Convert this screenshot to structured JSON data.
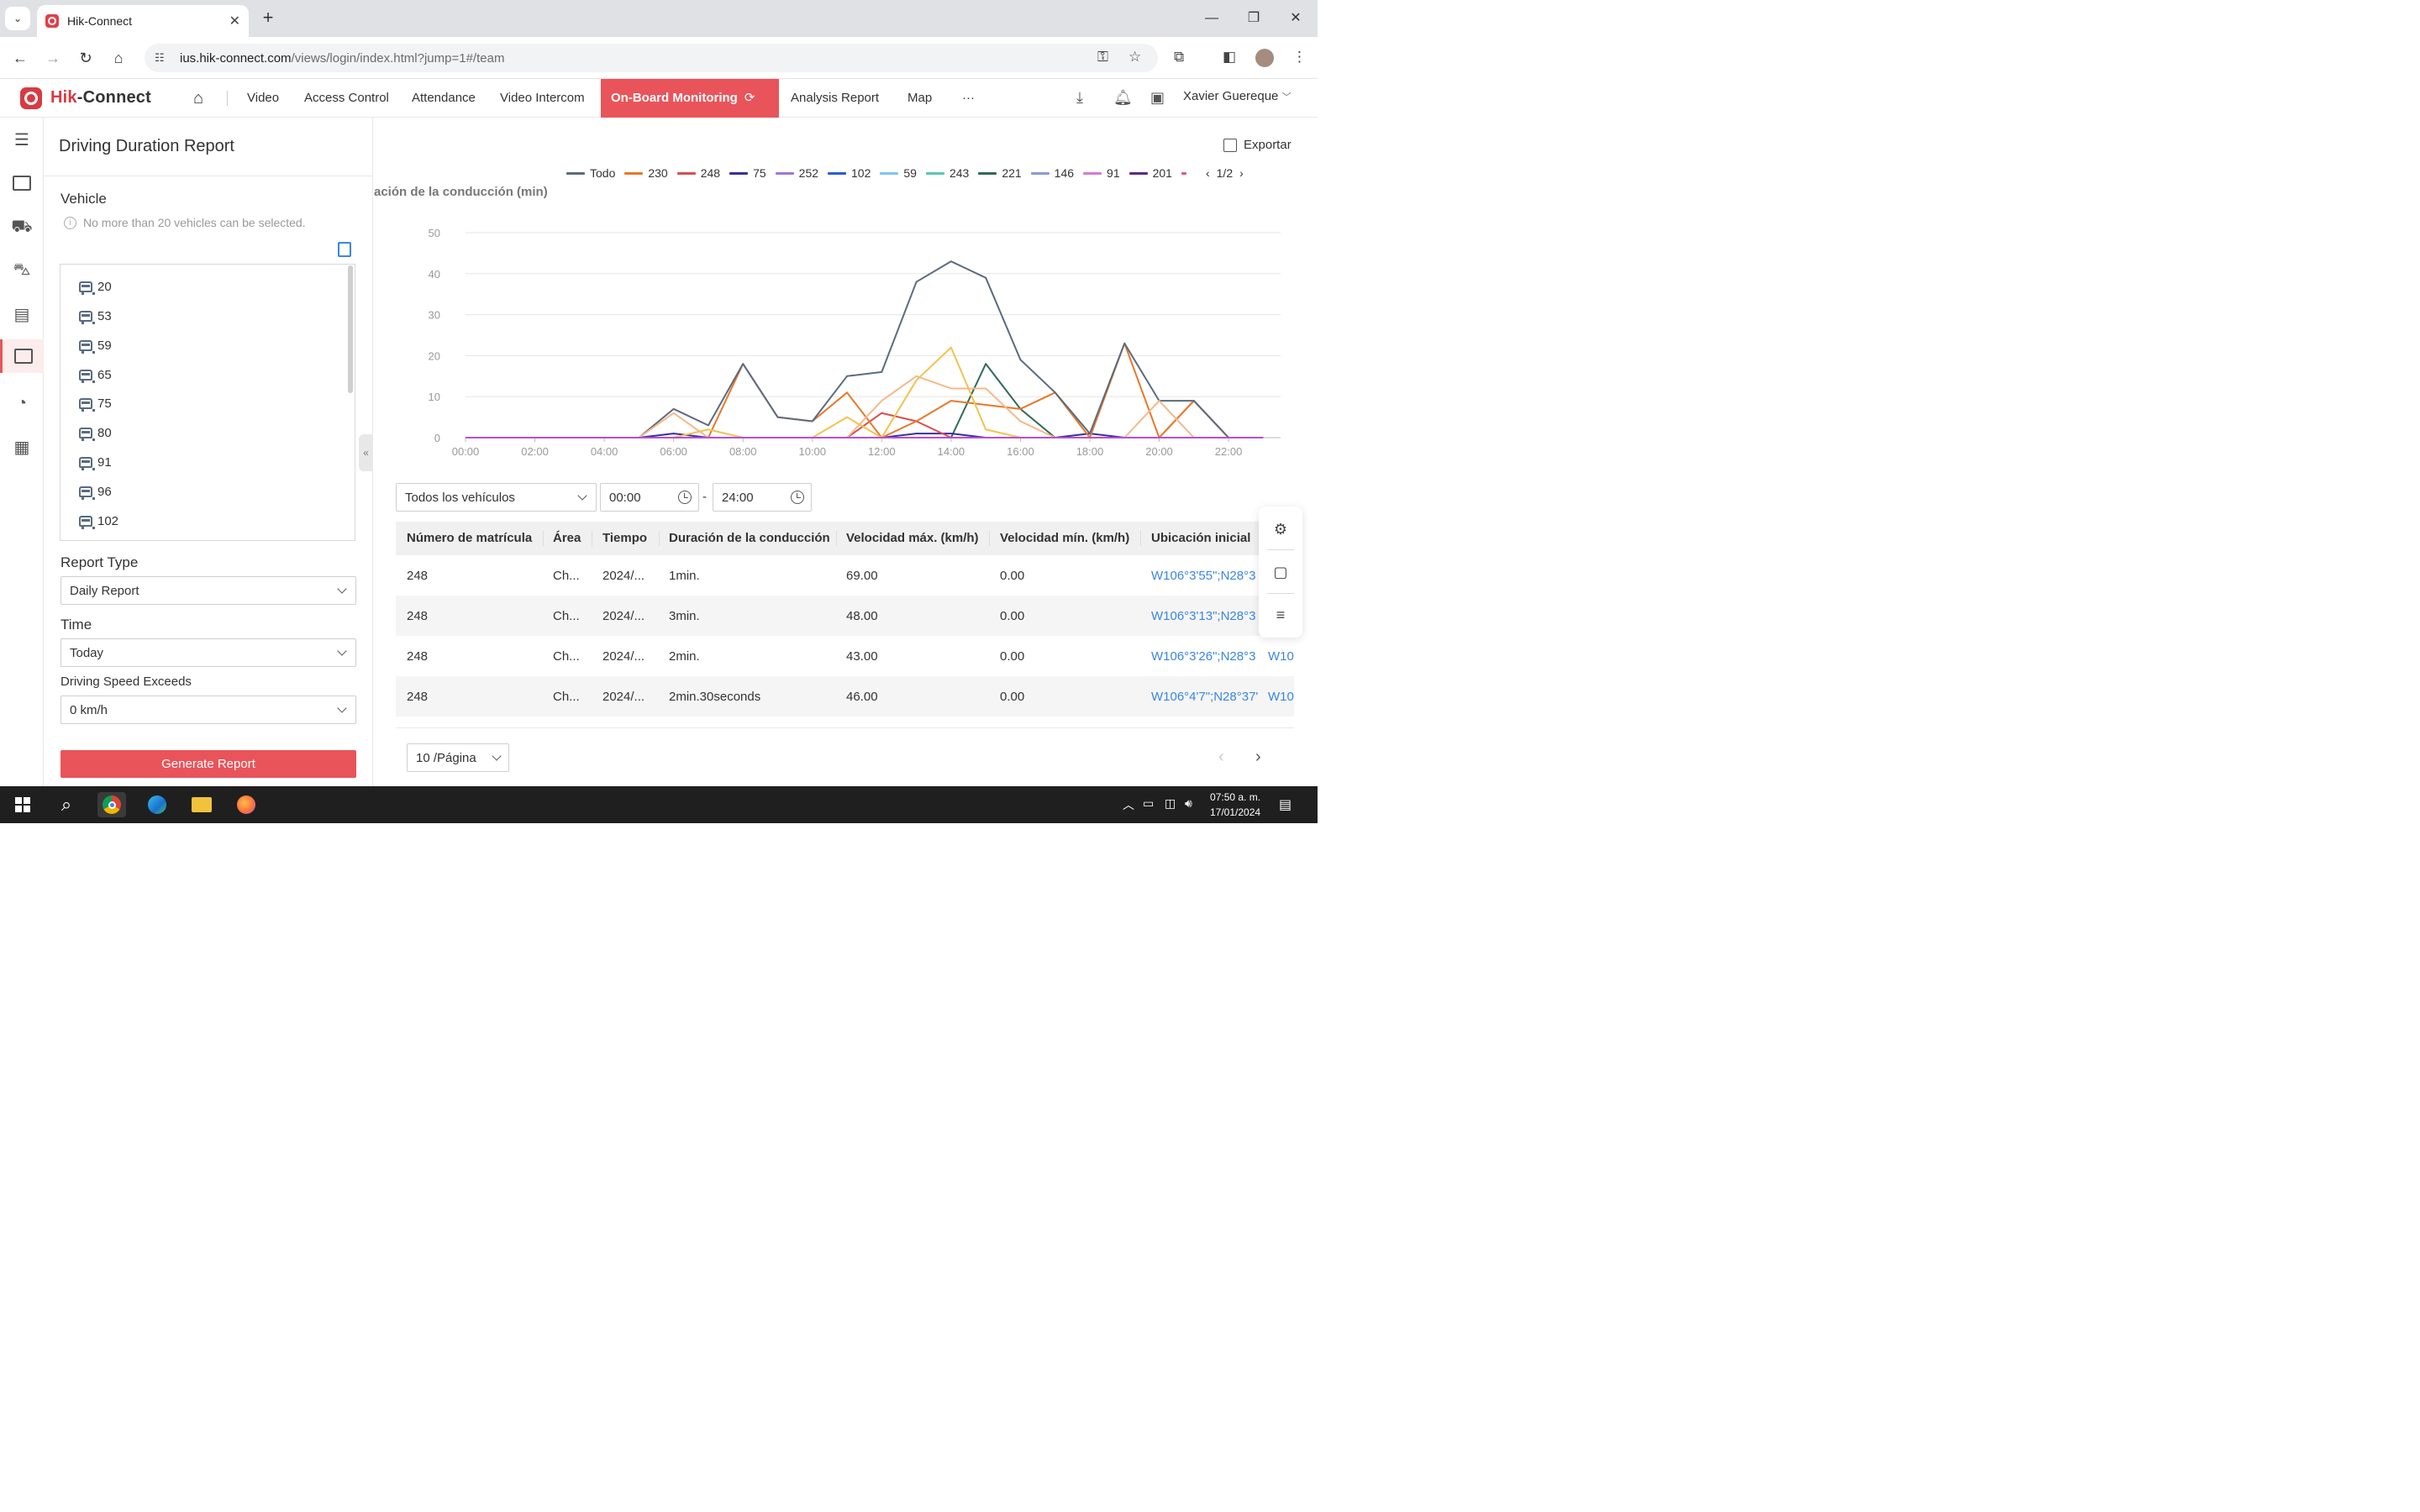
{
  "browser": {
    "tab_title": "Hik-Connect",
    "url_host": "ius.hik-connect.com",
    "url_path": "/views/login/index.html?jump=1#/team"
  },
  "app": {
    "logo_left": "Hik",
    "logo_right": "-Connect",
    "menu": [
      "Video",
      "Access Control",
      "Attendance",
      "Video Intercom"
    ],
    "menu_active": "On-Board Monitoring",
    "menu_after": [
      "Analysis Report",
      "Map"
    ],
    "more": "···",
    "user": "Xavier Guereque"
  },
  "panel": {
    "title": "Driving Duration Report",
    "vehicle_label": "Vehicle",
    "vehicle_hint": "No more than 20 vehicles can be selected.",
    "vehicles": [
      "20",
      "53",
      "59",
      "65",
      "75",
      "80",
      "91",
      "96",
      "102"
    ],
    "report_type_label": "Report Type",
    "report_type_value": "Daily Report",
    "time_label": "Time",
    "time_value": "Today",
    "speed_label": "Driving Speed Exceeds",
    "speed_value": "0 km/h",
    "generate_label": "Generate Report"
  },
  "main": {
    "export_label": "Exportar",
    "legend_page": "1/2",
    "filter_vehicle": "Todos los vehículos",
    "time_from": "00:00",
    "time_sep": "-",
    "time_to": "24:00",
    "columns": [
      "Número de matrícula",
      "Área",
      "Tiempo",
      "Duración de la conducción",
      "Velocidad máx. (km/h)",
      "Velocidad mín. (km/h)",
      "Ubicación inicial"
    ],
    "rows": [
      {
        "plate": "248",
        "area": "Ch...",
        "time": "2024/...",
        "duration": "1min.",
        "vmax": "69.00",
        "vmin": "0.00",
        "loc": "W106°3'55\";N28°3",
        "loc2": ""
      },
      {
        "plate": "248",
        "area": "Ch...",
        "time": "2024/...",
        "duration": "3min.",
        "vmax": "48.00",
        "vmin": "0.00",
        "loc": "W106°3'13\";N28°3",
        "loc2": ""
      },
      {
        "plate": "248",
        "area": "Ch...",
        "time": "2024/...",
        "duration": "2min.",
        "vmax": "43.00",
        "vmin": "0.00",
        "loc": "W106°3'26\";N28°3",
        "loc2": "W10"
      },
      {
        "plate": "248",
        "area": "Ch...",
        "time": "2024/...",
        "duration": "2min.30seconds",
        "vmax": "46.00",
        "vmin": "0.00",
        "loc": "W106°4'7\";N28°37'",
        "loc2": "W10"
      }
    ],
    "page_size": "10 /Página"
  },
  "taskbar": {
    "time": "07:50 a. m.",
    "date": "17/01/2024"
  },
  "chart_data": {
    "type": "line",
    "title": "",
    "ylabel": "ación de la conducción (min)",
    "xlabel": "",
    "ylim": [
      0,
      50
    ],
    "yticks": [
      0,
      10,
      20,
      30,
      40,
      50
    ],
    "xticks": [
      "00:00",
      "02:00",
      "04:00",
      "06:00",
      "08:00",
      "10:00",
      "12:00",
      "14:00",
      "16:00",
      "18:00",
      "20:00",
      "22:00"
    ],
    "x": [
      0,
      1,
      2,
      3,
      4,
      5,
      6,
      7,
      8,
      9,
      10,
      11,
      12,
      13,
      14,
      15,
      16,
      17,
      18,
      19,
      20,
      21,
      22,
      23
    ],
    "grid": true,
    "legend_position": "top",
    "series": [
      {
        "name": "Todo",
        "color": "#5b6b80",
        "values": [
          0,
          0,
          0,
          0,
          0,
          0,
          7,
          3,
          18,
          5,
          4,
          15,
          16,
          38,
          43,
          39,
          19,
          11,
          1,
          23,
          9,
          9,
          0,
          0
        ]
      },
      {
        "name": "230",
        "color": "#e8782a",
        "values": [
          0,
          0,
          0,
          0,
          0,
          0,
          0,
          0,
          18,
          5,
          4,
          11,
          0,
          4,
          9,
          8,
          7,
          11,
          0,
          23,
          0,
          9,
          0,
          0
        ]
      },
      {
        "name": "248",
        "color": "#d94f4f",
        "values": [
          0,
          0,
          0,
          0,
          0,
          0,
          0,
          0,
          0,
          0,
          0,
          0,
          6,
          4,
          0,
          0,
          0,
          0,
          0,
          0,
          0,
          9,
          0,
          0
        ]
      },
      {
        "name": "75",
        "color": "#3a2ea0",
        "values": [
          0,
          0,
          0,
          0,
          0,
          0,
          1,
          0,
          0,
          0,
          0,
          0,
          0,
          1,
          1,
          0,
          0,
          0,
          1,
          0,
          0,
          0,
          0,
          0
        ]
      },
      {
        "name": "252",
        "color": "#9b7ad6",
        "values": [
          0,
          0,
          0,
          0,
          0,
          0,
          0,
          0,
          0,
          0,
          0,
          0,
          0,
          0,
          0,
          0,
          0,
          0,
          0,
          0,
          0,
          0,
          0,
          0
        ]
      },
      {
        "name": "102",
        "color": "#2d5bd6",
        "values": [
          0,
          0,
          0,
          0,
          0,
          0,
          0,
          0,
          0,
          0,
          0,
          0,
          0,
          0,
          0,
          0,
          0,
          0,
          0,
          0,
          0,
          0,
          0,
          0
        ]
      },
      {
        "name": "59",
        "color": "#7ac6ef",
        "values": [
          0,
          0,
          0,
          0,
          0,
          0,
          0,
          0,
          0,
          0,
          0,
          0,
          0,
          0,
          0,
          0,
          0,
          0,
          0,
          0,
          0,
          0,
          0,
          0
        ]
      },
      {
        "name": "243",
        "color": "#5bc6b0",
        "values": [
          0,
          0,
          0,
          0,
          0,
          0,
          0,
          0,
          0,
          0,
          0,
          0,
          0,
          0,
          0,
          0,
          0,
          0,
          0,
          0,
          0,
          0,
          0,
          0
        ]
      },
      {
        "name": "221",
        "color": "#2f6b55",
        "values": [
          0,
          0,
          0,
          0,
          0,
          0,
          0,
          0,
          0,
          0,
          0,
          0,
          0,
          0,
          0,
          18,
          7,
          0,
          0,
          0,
          0,
          0,
          0,
          0
        ]
      },
      {
        "name": "146",
        "color": "#8a9ad6",
        "values": [
          0,
          0,
          0,
          0,
          0,
          0,
          0,
          0,
          0,
          0,
          0,
          0,
          0,
          0,
          0,
          0,
          0,
          0,
          0,
          0,
          0,
          0,
          0,
          0
        ]
      },
      {
        "name": "91",
        "color": "#d67ad6",
        "values": [
          0,
          0,
          0,
          0,
          0,
          0,
          0,
          0,
          0,
          0,
          0,
          0,
          0,
          0,
          0,
          0,
          0,
          0,
          0,
          0,
          0,
          0,
          0,
          0
        ]
      },
      {
        "name": "201",
        "color": "#5a2a8a",
        "values": [
          0,
          0,
          0,
          0,
          0,
          0,
          0,
          0,
          0,
          0,
          0,
          0,
          0,
          0,
          0,
          0,
          0,
          0,
          0,
          0,
          0,
          0,
          0,
          0
        ]
      }
    ]
  }
}
